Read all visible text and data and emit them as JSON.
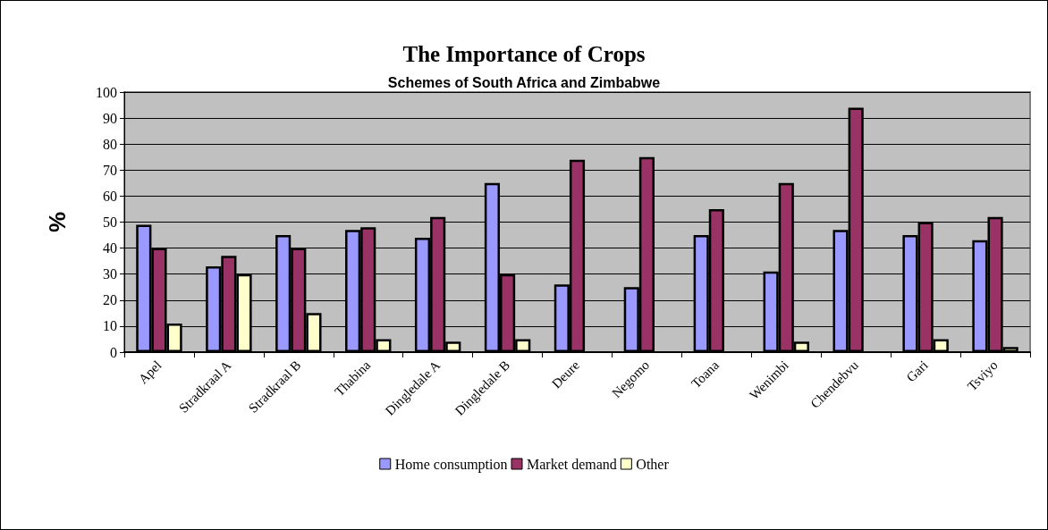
{
  "chart_data": {
    "type": "bar",
    "title": "The Importance of Crops",
    "subtitle": "Schemes of South Africa and Zimbabwe",
    "ylabel": "%",
    "categories": [
      "Apel",
      "Stradkraal A",
      "Stradkraal B",
      "Thabina",
      "Dingledale A",
      "Dingledale B",
      "Deure",
      "Negomo",
      "Toana",
      "Wenimbi",
      "Chendebvu",
      "Gari",
      "Tsviyo"
    ],
    "series": [
      {
        "name": "Home consumption",
        "color": "#9999ff",
        "values": [
          49,
          33,
          45,
          47,
          44,
          65,
          26,
          25,
          45,
          31,
          47,
          45,
          43
        ]
      },
      {
        "name": "Market demand",
        "color": "#993366",
        "values": [
          40,
          37,
          40,
          48,
          52,
          30,
          74,
          75,
          55,
          65,
          94,
          50,
          52
        ]
      },
      {
        "name": "Other",
        "color": "#ffffcc",
        "values": [
          11,
          30,
          15,
          5,
          4,
          5,
          null,
          null,
          null,
          4,
          null,
          5,
          2
        ]
      }
    ],
    "ylim": [
      0,
      100
    ],
    "yticks": [
      0,
      10,
      20,
      30,
      40,
      50,
      60,
      70,
      80,
      90,
      100
    ],
    "grid": "y",
    "legend": "bottom"
  }
}
